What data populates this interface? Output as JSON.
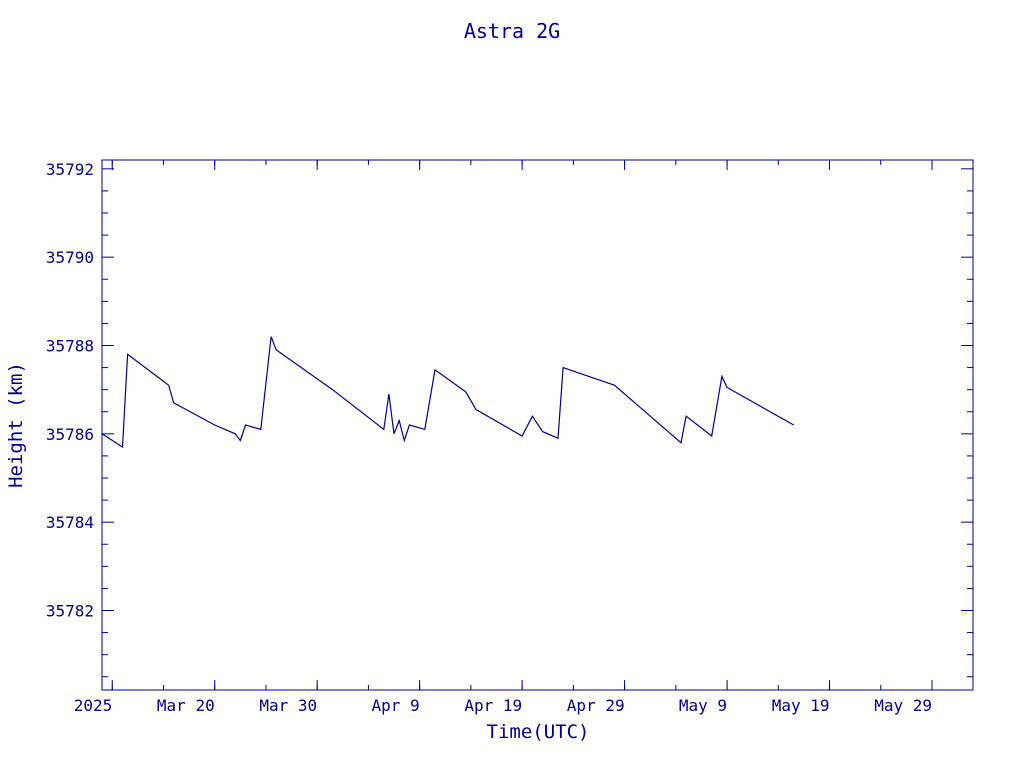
{
  "chart_data": {
    "type": "line",
    "title": "Astra 2G",
    "xlabel": "Time(UTC)",
    "ylabel": "Height (km)",
    "color": "#00008b",
    "grid": false,
    "ylim": [
      35780.2,
      35792.2
    ],
    "yticks": [
      35782,
      35784,
      35786,
      35788,
      35790,
      35792
    ],
    "xlim": [
      "2025-03-09",
      "2025-06-02"
    ],
    "xticks": [
      {
        "date": "2025-03-10",
        "label": "2025"
      },
      {
        "date": "2025-03-20",
        "label": "Mar 20"
      },
      {
        "date": "2025-03-30",
        "label": "Mar 30"
      },
      {
        "date": "2025-04-09",
        "label": "Apr  9"
      },
      {
        "date": "2025-04-19",
        "label": "Apr 19"
      },
      {
        "date": "2025-04-29",
        "label": "Apr 29"
      },
      {
        "date": "2025-05-09",
        "label": "May  9"
      },
      {
        "date": "2025-05-19",
        "label": "May 19"
      },
      {
        "date": "2025-05-29",
        "label": "May 29"
      }
    ],
    "series": [
      {
        "x": [
          "2025-03-09T00:00",
          "2025-03-11T00:00",
          "2025-03-11T12:00",
          "2025-03-15T12:00",
          "2025-03-16T00:00",
          "2025-03-20T00:00",
          "2025-03-22T00:00",
          "2025-03-22T12:00",
          "2025-03-23T00:00",
          "2025-03-24T12:00",
          "2025-03-25T12:00",
          "2025-03-26T00:00",
          "2025-03-31T12:00",
          "2025-04-05T12:00",
          "2025-04-06T00:00",
          "2025-04-06T12:00",
          "2025-04-07T00:00",
          "2025-04-07T12:00",
          "2025-04-08T00:00",
          "2025-04-09T12:00",
          "2025-04-10T12:00",
          "2025-04-13T12:00",
          "2025-04-14T12:00",
          "2025-04-19T00:00",
          "2025-04-20T00:00",
          "2025-04-21T00:00",
          "2025-04-22T12:00",
          "2025-04-23T00:00",
          "2025-04-28T00:00",
          "2025-05-04T12:00",
          "2025-05-05T00:00",
          "2025-05-07T12:00",
          "2025-05-08T12:00",
          "2025-05-09T00:00",
          "2025-05-15T12:00"
        ],
        "values": [
          35786.0,
          35785.7,
          35787.8,
          35787.1,
          35786.7,
          35786.2,
          35786.0,
          35785.85,
          35786.2,
          35786.1,
          35788.2,
          35787.9,
          35787.0,
          35786.1,
          35786.9,
          35786.0,
          35786.3,
          35785.85,
          35786.2,
          35786.1,
          35787.45,
          35786.95,
          35786.55,
          35785.95,
          35786.4,
          35786.05,
          35785.9,
          35787.5,
          35787.1,
          35785.8,
          35786.4,
          35785.95,
          35787.3,
          35787.05,
          35786.2
        ]
      }
    ]
  }
}
